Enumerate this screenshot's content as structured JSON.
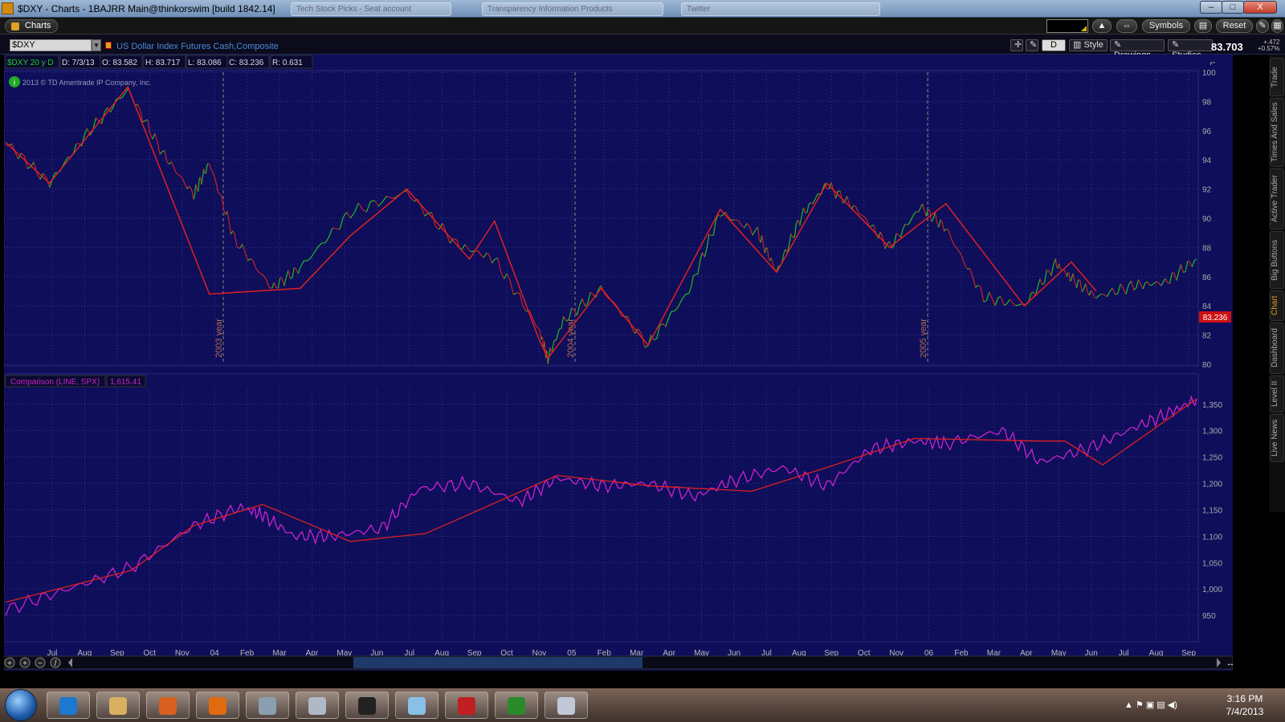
{
  "window": {
    "title": "$DXY - Charts - 1BAJRR Main@thinkorswim [build 1842.14]",
    "background_tabs": [
      "Tech Stock Picks - Seat account",
      "Transparency Information Products",
      "Twitter"
    ],
    "minimize": "–",
    "maximize": "□",
    "close": "X"
  },
  "toolbar": {
    "charts_tab": "Charts",
    "symbols": "Symbols",
    "reset": "Reset"
  },
  "chart_header": {
    "symbol": "$DXY",
    "description": "US Dollar Index Futures Cash,Composite",
    "style": "Style",
    "drawings": "Drawings",
    "studies": "Studies",
    "period_button": "D",
    "last_price": "83.703",
    "net_change": "+.472",
    "pct_change": "+0.57%"
  },
  "ohlc": {
    "symbol_label": "$DXY 20 y D",
    "date": "D: 7/3/13",
    "open": "O: 83.582",
    "high": "H: 83.717",
    "low": "L: 83.086",
    "close": "C: 83.236",
    "range": "R: 0.631"
  },
  "copyright": "2013 © TD Ameritrade IP Company, Inc.",
  "colors": {
    "chart_bg": "#0e0e5a",
    "up": "#22bb22",
    "down": "#cc2222",
    "zigzag": "#e02020",
    "comparison": "#cc22cc",
    "price_tag": "#cc1111"
  },
  "chart_data": [
    {
      "type": "line",
      "title": "$DXY 20 y D",
      "series": [
        {
          "name": "$DXY",
          "x": [
            0,
            14,
            26,
            39,
            50,
            60,
            65,
            73,
            85,
            94,
            110,
            128,
            144,
            156,
            170,
            173,
            178,
            190,
            205,
            218,
            228,
            240,
            246,
            254,
            262,
            272,
            282,
            292,
            300,
            312,
            325,
            335,
            340,
            348,
            360,
            370,
            380
          ],
          "y": [
            95.2,
            92.4,
            95.8,
            98.8,
            94.5,
            91.6,
            93.8,
            88.6,
            85.2,
            86.6,
            90.4,
            91.8,
            88.2,
            87.2,
            82.5,
            80.4,
            83.0,
            85.2,
            81.3,
            85.0,
            90.4,
            89.0,
            86.3,
            90.2,
            92.3,
            90.5,
            88.0,
            90.8,
            89.3,
            84.6,
            84.0,
            86.9,
            85.9,
            84.6,
            85.4,
            85.6,
            87.2
          ]
        },
        {
          "name": "ZigZag",
          "x": [
            0,
            14,
            39,
            65,
            94,
            110,
            128,
            148,
            156,
            170,
            173,
            190,
            205,
            228,
            246,
            262,
            282,
            300,
            325,
            340,
            348
          ],
          "y": [
            95.2,
            92.4,
            99.0,
            84.8,
            85.2,
            88.8,
            92.0,
            87.2,
            89.8,
            81.8,
            80.4,
            85.2,
            81.3,
            90.6,
            86.3,
            92.4,
            88.0,
            91.0,
            84.0,
            87.0,
            85.0
          ]
        }
      ],
      "x_ticks": [
        "Jul",
        "Aug",
        "Sep",
        "Oct",
        "Nov",
        "04",
        "Feb",
        "Mar",
        "Apr",
        "May",
        "Jun",
        "Jul",
        "Aug",
        "Sep",
        "Oct",
        "Nov",
        "05",
        "Feb",
        "Mar",
        "Apr",
        "May",
        "Jun",
        "Jul",
        "Aug",
        "Sep",
        "Oct",
        "Nov",
        "06",
        "Feb",
        "Mar",
        "Apr",
        "May",
        "Jun",
        "Jul",
        "Aug",
        "Sep"
      ],
      "ylim": [
        80,
        100
      ],
      "y_ticks": [
        "80",
        "82",
        "84",
        "86",
        "88",
        "90",
        "92",
        "94",
        "96",
        "98",
        "100"
      ],
      "year_markers": [
        "2003 year",
        "2004 year",
        "2005 year"
      ],
      "current_price_tag": "83.236",
      "grid": true
    },
    {
      "type": "line",
      "title": "Comparison (LINE, SPX)",
      "value_label": "1,615.41",
      "series": [
        {
          "name": "SPX",
          "x": [
            0,
            20,
            40,
            60,
            75,
            82,
            92,
            104,
            120,
            132,
            148,
            164,
            176,
            190,
            205,
            220,
            232,
            248,
            262,
            276,
            290,
            300,
            318,
            330,
            345,
            360,
            372,
            380
          ],
          "y": [
            960,
            1000,
            1040,
            1120,
            1155,
            1140,
            1100,
            1100,
            1115,
            1190,
            1200,
            1165,
            1210,
            1195,
            1200,
            1175,
            1205,
            1230,
            1195,
            1265,
            1280,
            1275,
            1300,
            1240,
            1265,
            1305,
            1335,
            1360
          ]
        },
        {
          "name": "ZigZag",
          "x": [
            0,
            40,
            60,
            82,
            110,
            134,
            176,
            206,
            238,
            262,
            290,
            330,
            338,
            350,
            380
          ],
          "y": [
            975,
            1035,
            1120,
            1160,
            1090,
            1105,
            1215,
            1195,
            1185,
            1230,
            1285,
            1280,
            1280,
            1235,
            1360
          ]
        }
      ],
      "ylim": [
        900,
        1380
      ],
      "y_ticks": [
        "950",
        "1,000",
        "1,050",
        "1,100",
        "1,150",
        "1,200",
        "1,250",
        "1,300",
        "1,350"
      ],
      "grid": true
    }
  ],
  "sidebar_tabs": [
    "Trade",
    "Times And Sales",
    "Active Trader",
    "Big Buttons",
    "Chart",
    "Dashboard",
    "Level II",
    "Live News"
  ],
  "taskbar": {
    "time": "3:16 PM",
    "date": "7/4/2013",
    "apps": [
      "internet-explorer-icon",
      "file-explorer-icon",
      "media-player-icon",
      "firefox-icon",
      "filing-icon",
      "calculator-icon",
      "steam-icon",
      "notes-icon",
      "pdf-reader-icon",
      "thinkorswim-icon",
      "paint-icon"
    ]
  }
}
